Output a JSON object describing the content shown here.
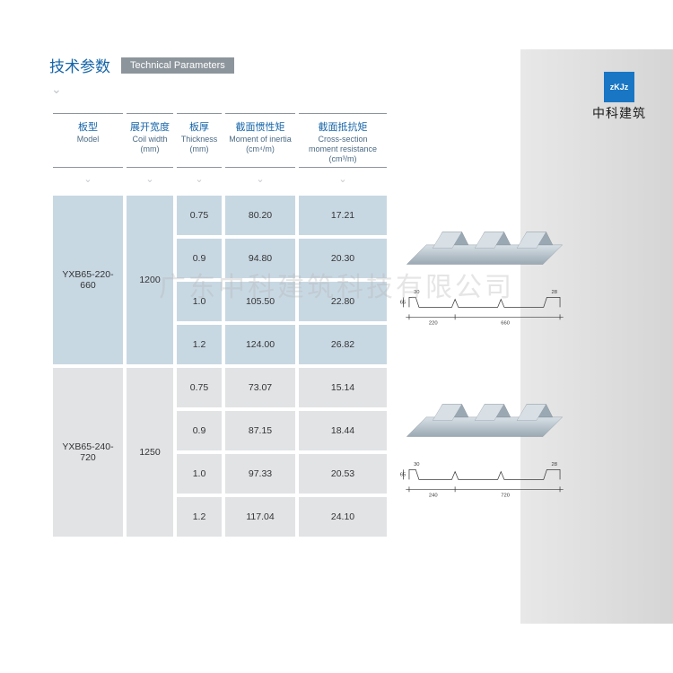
{
  "header": {
    "title_cn": "技术参数",
    "title_en": "Technical Parameters"
  },
  "logo": {
    "icon_text": "zKJz",
    "name": "中科建筑"
  },
  "watermark": "广东中科建筑科技有限公司",
  "columns": [
    {
      "cn": "板型",
      "en": "Model",
      "unit": ""
    },
    {
      "cn": "展开宽度",
      "en": "Coil width",
      "unit": "(mm)"
    },
    {
      "cn": "板厚",
      "en": "Thickness",
      "unit": "(mm)"
    },
    {
      "cn": "截面惯性矩",
      "en": "Moment of inertia",
      "unit": "(cm⁴/m)"
    },
    {
      "cn": "截面抵抗矩",
      "en": "Cross-section moment resistance",
      "unit": "(cm³/m)"
    }
  ],
  "groups": [
    {
      "model": "YXB65-220-660",
      "coil_width": "1200",
      "bg_class": "grp-a",
      "rows": [
        {
          "t": "0.75",
          "moi": "80.20",
          "csm": "17.21"
        },
        {
          "t": "0.9",
          "moi": "94.80",
          "csm": "20.30"
        },
        {
          "t": "1.0",
          "moi": "105.50",
          "csm": "22.80"
        },
        {
          "t": "1.2",
          "moi": "124.00",
          "csm": "26.82"
        }
      ],
      "profile": {
        "pitch": "220",
        "total": "660",
        "height": "65",
        "top_left": "30",
        "top_right": "28"
      }
    },
    {
      "model": "YXB65-240-720",
      "coil_width": "1250",
      "bg_class": "grp-b",
      "rows": [
        {
          "t": "0.75",
          "moi": "73.07",
          "csm": "15.14"
        },
        {
          "t": "0.9",
          "moi": "87.15",
          "csm": "18.44"
        },
        {
          "t": "1.0",
          "moi": "97.33",
          "csm": "20.53"
        },
        {
          "t": "1.2",
          "moi": "117.04",
          "csm": "24.10"
        }
      ],
      "profile": {
        "pitch": "240",
        "total": "720",
        "height": "65",
        "top_left": "30",
        "top_right": "28"
      }
    }
  ],
  "colors": {
    "primary": "#1565a8",
    "badge_bg": "#8d959c",
    "group_a_bg": "#c8d8e3",
    "group_b_bg": "#e1e3e5",
    "steel_light": "#d8e0e6",
    "steel_dark": "#9aa8b3",
    "line": "#3a3a3a"
  }
}
